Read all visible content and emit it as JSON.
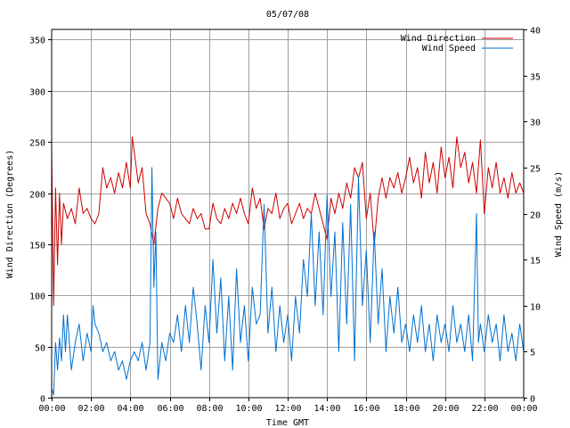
{
  "chart_data": {
    "type": "line",
    "title": "05/07/08",
    "xlabel": "Time GMT",
    "ylabel_left": "Wind Direction (Degrees)",
    "ylabel_right": "Wind Speed (m/s)",
    "x_ticks": [
      "00:00",
      "02:00",
      "04:00",
      "06:00",
      "08:00",
      "10:00",
      "12:00",
      "14:00",
      "16:00",
      "18:00",
      "20:00",
      "22:00",
      "00:00"
    ],
    "x_range_hours": [
      0,
      24
    ],
    "y_left_ticks": [
      "0",
      "50",
      "100",
      "150",
      "200",
      "250",
      "300",
      "350"
    ],
    "y_left_range": [
      0,
      360
    ],
    "y_right_ticks": [
      "0",
      "5",
      "10",
      "15",
      "20",
      "25",
      "30",
      "35",
      "40"
    ],
    "y_right_range": [
      0,
      40
    ],
    "grid": true,
    "legend_position": "top-right",
    "series": [
      {
        "name": "Wind Direction",
        "axis": "left",
        "color": "#cc0000",
        "points": [
          [
            0.0,
            245
          ],
          [
            0.1,
            90
          ],
          [
            0.2,
            205
          ],
          [
            0.3,
            130
          ],
          [
            0.4,
            200
          ],
          [
            0.5,
            150
          ],
          [
            0.6,
            190
          ],
          [
            0.8,
            175
          ],
          [
            1.0,
            185
          ],
          [
            1.2,
            170
          ],
          [
            1.4,
            205
          ],
          [
            1.6,
            180
          ],
          [
            1.8,
            185
          ],
          [
            2.0,
            175
          ],
          [
            2.2,
            170
          ],
          [
            2.4,
            180
          ],
          [
            2.6,
            225
          ],
          [
            2.8,
            205
          ],
          [
            3.0,
            215
          ],
          [
            3.2,
            200
          ],
          [
            3.4,
            220
          ],
          [
            3.6,
            205
          ],
          [
            3.8,
            230
          ],
          [
            4.0,
            205
          ],
          [
            4.1,
            255
          ],
          [
            4.2,
            240
          ],
          [
            4.4,
            210
          ],
          [
            4.6,
            225
          ],
          [
            4.8,
            180
          ],
          [
            5.0,
            170
          ],
          [
            5.2,
            150
          ],
          [
            5.4,
            185
          ],
          [
            5.6,
            200
          ],
          [
            5.8,
            195
          ],
          [
            6.0,
            190
          ],
          [
            6.2,
            175
          ],
          [
            6.4,
            195
          ],
          [
            6.6,
            180
          ],
          [
            6.8,
            175
          ],
          [
            7.0,
            170
          ],
          [
            7.2,
            185
          ],
          [
            7.4,
            175
          ],
          [
            7.6,
            180
          ],
          [
            7.8,
            165
          ],
          [
            8.0,
            165
          ],
          [
            8.2,
            190
          ],
          [
            8.4,
            175
          ],
          [
            8.6,
            170
          ],
          [
            8.8,
            185
          ],
          [
            9.0,
            175
          ],
          [
            9.2,
            190
          ],
          [
            9.4,
            180
          ],
          [
            9.6,
            195
          ],
          [
            9.8,
            180
          ],
          [
            10.0,
            170
          ],
          [
            10.2,
            205
          ],
          [
            10.4,
            185
          ],
          [
            10.6,
            195
          ],
          [
            10.8,
            165
          ],
          [
            11.0,
            185
          ],
          [
            11.2,
            180
          ],
          [
            11.4,
            200
          ],
          [
            11.6,
            175
          ],
          [
            11.8,
            185
          ],
          [
            12.0,
            190
          ],
          [
            12.2,
            170
          ],
          [
            12.4,
            180
          ],
          [
            12.6,
            190
          ],
          [
            12.8,
            175
          ],
          [
            13.0,
            185
          ],
          [
            13.2,
            180
          ],
          [
            13.4,
            200
          ],
          [
            13.6,
            185
          ],
          [
            13.8,
            170
          ],
          [
            14.0,
            155
          ],
          [
            14.2,
            195
          ],
          [
            14.4,
            180
          ],
          [
            14.6,
            200
          ],
          [
            14.8,
            185
          ],
          [
            15.0,
            210
          ],
          [
            15.2,
            195
          ],
          [
            15.4,
            225
          ],
          [
            15.6,
            215
          ],
          [
            15.8,
            230
          ],
          [
            16.0,
            175
          ],
          [
            16.2,
            200
          ],
          [
            16.4,
            150
          ],
          [
            16.6,
            195
          ],
          [
            16.8,
            215
          ],
          [
            17.0,
            195
          ],
          [
            17.2,
            215
          ],
          [
            17.4,
            205
          ],
          [
            17.6,
            220
          ],
          [
            17.8,
            200
          ],
          [
            18.0,
            215
          ],
          [
            18.2,
            235
          ],
          [
            18.4,
            210
          ],
          [
            18.6,
            225
          ],
          [
            18.8,
            195
          ],
          [
            19.0,
            240
          ],
          [
            19.2,
            210
          ],
          [
            19.4,
            230
          ],
          [
            19.6,
            200
          ],
          [
            19.8,
            245
          ],
          [
            20.0,
            215
          ],
          [
            20.2,
            235
          ],
          [
            20.4,
            205
          ],
          [
            20.6,
            255
          ],
          [
            20.8,
            225
          ],
          [
            21.0,
            240
          ],
          [
            21.2,
            210
          ],
          [
            21.4,
            230
          ],
          [
            21.6,
            200
          ],
          [
            21.8,
            252
          ],
          [
            22.0,
            180
          ],
          [
            22.2,
            225
          ],
          [
            22.4,
            205
          ],
          [
            22.6,
            230
          ],
          [
            22.8,
            200
          ],
          [
            23.0,
            215
          ],
          [
            23.2,
            195
          ],
          [
            23.4,
            220
          ],
          [
            23.6,
            200
          ],
          [
            23.8,
            210
          ],
          [
            24.0,
            200
          ]
        ]
      },
      {
        "name": "Wind Speed",
        "axis": "right",
        "color": "#0070d0",
        "points": [
          [
            0.0,
            1
          ],
          [
            0.1,
            0.3
          ],
          [
            0.2,
            6
          ],
          [
            0.3,
            3
          ],
          [
            0.4,
            6.5
          ],
          [
            0.5,
            4
          ],
          [
            0.6,
            9
          ],
          [
            0.7,
            5
          ],
          [
            0.8,
            9
          ],
          [
            1.0,
            3
          ],
          [
            1.2,
            6
          ],
          [
            1.4,
            8
          ],
          [
            1.6,
            4
          ],
          [
            1.8,
            7
          ],
          [
            2.0,
            5
          ],
          [
            2.1,
            10
          ],
          [
            2.2,
            8
          ],
          [
            2.4,
            7
          ],
          [
            2.6,
            5
          ],
          [
            2.8,
            6
          ],
          [
            3.0,
            4
          ],
          [
            3.2,
            5
          ],
          [
            3.4,
            3
          ],
          [
            3.6,
            4
          ],
          [
            3.8,
            2
          ],
          [
            4.0,
            4
          ],
          [
            4.2,
            5
          ],
          [
            4.4,
            4
          ],
          [
            4.6,
            6
          ],
          [
            4.8,
            3
          ],
          [
            5.0,
            6
          ],
          [
            5.1,
            25
          ],
          [
            5.2,
            12
          ],
          [
            5.3,
            18
          ],
          [
            5.4,
            2
          ],
          [
            5.6,
            6
          ],
          [
            5.8,
            4
          ],
          [
            6.0,
            7
          ],
          [
            6.2,
            6
          ],
          [
            6.4,
            9
          ],
          [
            6.6,
            5
          ],
          [
            6.8,
            10
          ],
          [
            7.0,
            6
          ],
          [
            7.2,
            12
          ],
          [
            7.4,
            8
          ],
          [
            7.6,
            3
          ],
          [
            7.8,
            10
          ],
          [
            8.0,
            6
          ],
          [
            8.2,
            15
          ],
          [
            8.4,
            7
          ],
          [
            8.6,
            13
          ],
          [
            8.8,
            4
          ],
          [
            9.0,
            11
          ],
          [
            9.2,
            3
          ],
          [
            9.4,
            14
          ],
          [
            9.6,
            6
          ],
          [
            9.8,
            10
          ],
          [
            10.0,
            4
          ],
          [
            10.2,
            12
          ],
          [
            10.4,
            8
          ],
          [
            10.6,
            9
          ],
          [
            10.8,
            21
          ],
          [
            11.0,
            7
          ],
          [
            11.2,
            12
          ],
          [
            11.4,
            5
          ],
          [
            11.6,
            10
          ],
          [
            11.8,
            6
          ],
          [
            12.0,
            9
          ],
          [
            12.2,
            4
          ],
          [
            12.4,
            11
          ],
          [
            12.6,
            7
          ],
          [
            12.8,
            15
          ],
          [
            13.0,
            11
          ],
          [
            13.2,
            20
          ],
          [
            13.4,
            10
          ],
          [
            13.6,
            18
          ],
          [
            13.8,
            9
          ],
          [
            14.0,
            22
          ],
          [
            14.2,
            11
          ],
          [
            14.4,
            18
          ],
          [
            14.6,
            5
          ],
          [
            14.8,
            19
          ],
          [
            15.0,
            8
          ],
          [
            15.2,
            21
          ],
          [
            15.4,
            4
          ],
          [
            15.6,
            24
          ],
          [
            15.8,
            10
          ],
          [
            16.0,
            16
          ],
          [
            16.2,
            6
          ],
          [
            16.4,
            18
          ],
          [
            16.6,
            8
          ],
          [
            16.8,
            14
          ],
          [
            17.0,
            5
          ],
          [
            17.2,
            11
          ],
          [
            17.4,
            7
          ],
          [
            17.6,
            12
          ],
          [
            17.8,
            6
          ],
          [
            18.0,
            8
          ],
          [
            18.2,
            5
          ],
          [
            18.4,
            9
          ],
          [
            18.6,
            6
          ],
          [
            18.8,
            10
          ],
          [
            19.0,
            5
          ],
          [
            19.2,
            8
          ],
          [
            19.4,
            4
          ],
          [
            19.6,
            9
          ],
          [
            19.8,
            6
          ],
          [
            20.0,
            8
          ],
          [
            20.2,
            5
          ],
          [
            20.4,
            10
          ],
          [
            20.6,
            6
          ],
          [
            20.8,
            8
          ],
          [
            21.0,
            5
          ],
          [
            21.2,
            9
          ],
          [
            21.4,
            4
          ],
          [
            21.6,
            20
          ],
          [
            21.7,
            6
          ],
          [
            21.8,
            8
          ],
          [
            22.0,
            5
          ],
          [
            22.2,
            9
          ],
          [
            22.4,
            6
          ],
          [
            22.6,
            8
          ],
          [
            22.8,
            4
          ],
          [
            23.0,
            9
          ],
          [
            23.2,
            5
          ],
          [
            23.4,
            7
          ],
          [
            23.6,
            4
          ],
          [
            23.8,
            8
          ],
          [
            24.0,
            5
          ]
        ]
      }
    ]
  }
}
